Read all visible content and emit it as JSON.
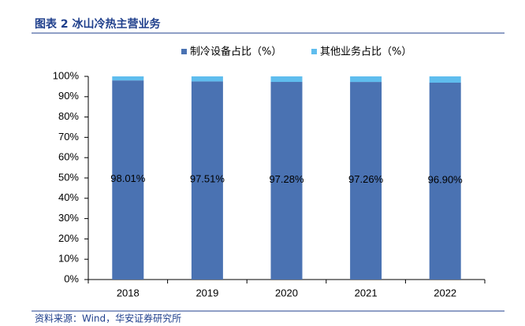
{
  "chart_data": {
    "type": "stacked_bar",
    "title": "图表 2 冰山冷热主营业务",
    "source": "资料来源：Wind，华安证券研究所",
    "categories": [
      "2018",
      "2019",
      "2020",
      "2021",
      "2022"
    ],
    "series": [
      {
        "name": "制冷设备占比（%）",
        "color": "#4a72b2",
        "values": [
          98.01,
          97.51,
          97.28,
          97.26,
          96.9
        ],
        "value_labels": [
          "98.01%",
          "97.51%",
          "97.28%",
          "97.26%",
          "96.90%"
        ]
      },
      {
        "name": "其他业务占比（%）",
        "color": "#5fbdee",
        "values": [
          1.99,
          2.49,
          2.72,
          2.74,
          3.1
        ]
      }
    ],
    "ylim": [
      0,
      100
    ],
    "yticks": [
      {
        "value": 0,
        "label": "0%"
      },
      {
        "value": 10,
        "label": "10%"
      },
      {
        "value": 20,
        "label": "20%"
      },
      {
        "value": 30,
        "label": "30%"
      },
      {
        "value": 40,
        "label": "40%"
      },
      {
        "value": 50,
        "label": "50%"
      },
      {
        "value": 60,
        "label": "60%"
      },
      {
        "value": 70,
        "label": "70%"
      },
      {
        "value": 80,
        "label": "80%"
      },
      {
        "value": 90,
        "label": "90%"
      },
      {
        "value": 100,
        "label": "100%"
      }
    ],
    "legend": "top"
  }
}
